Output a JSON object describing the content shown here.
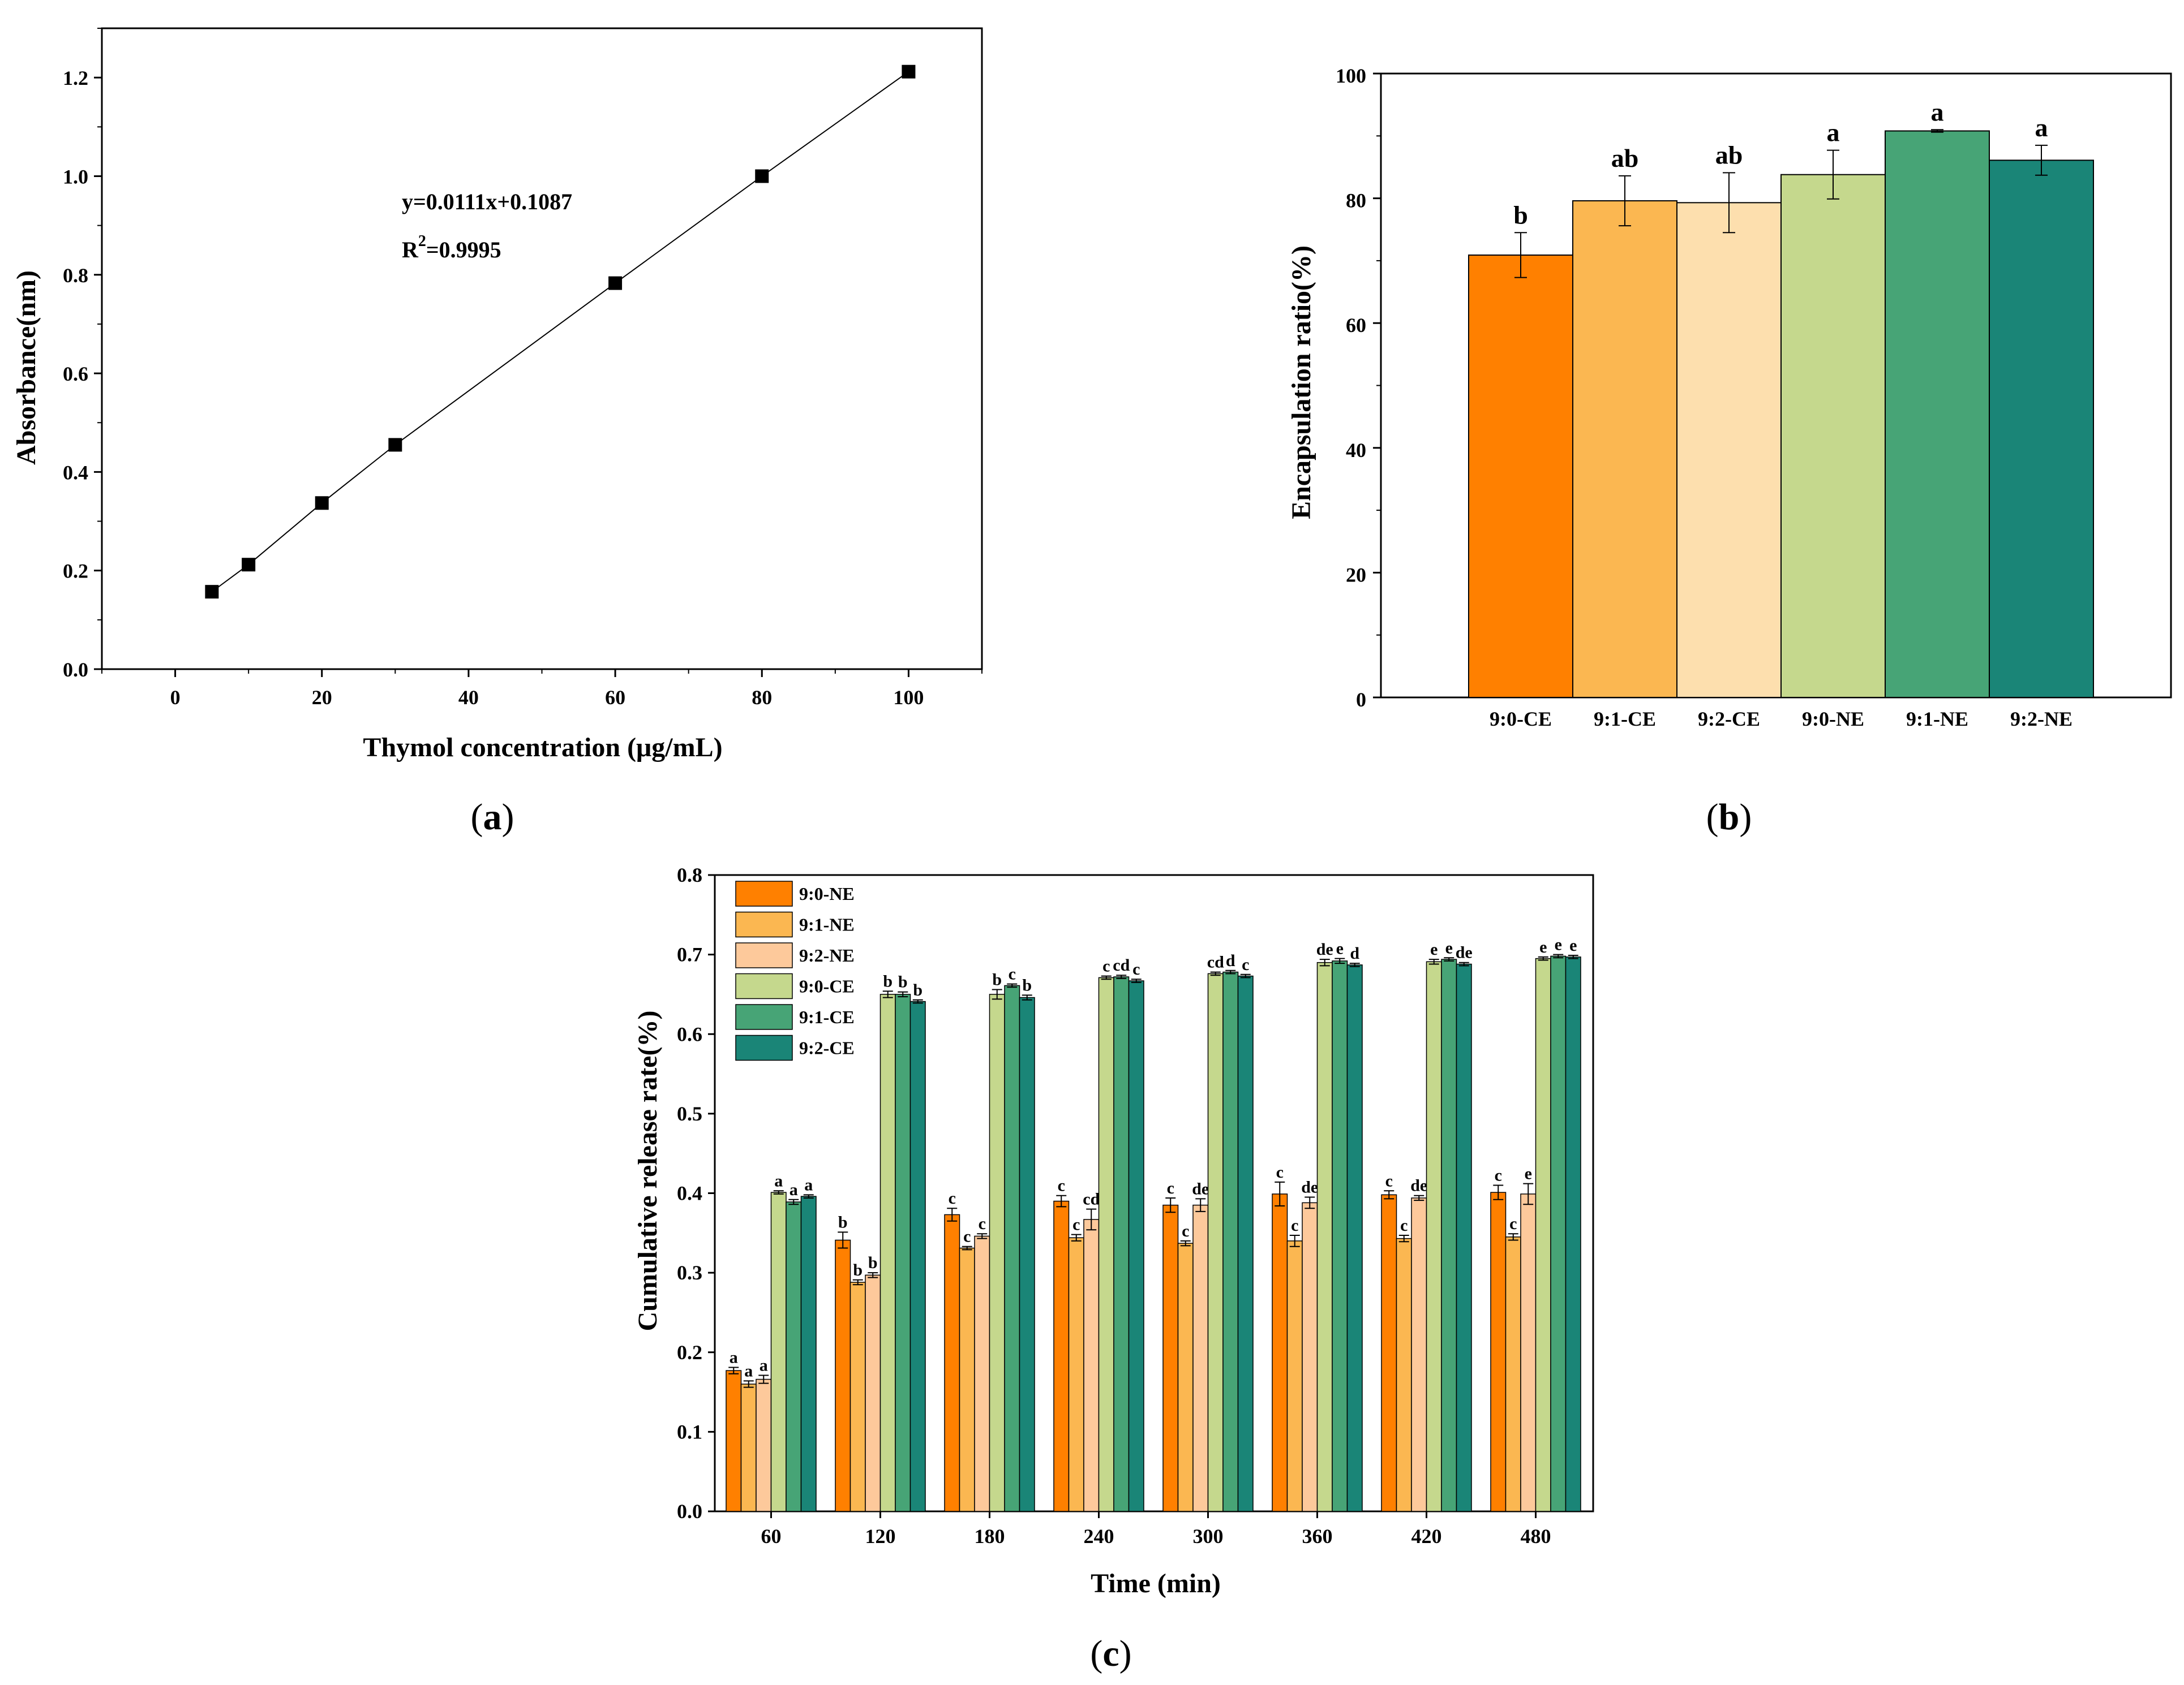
{
  "panels": {
    "a": {
      "label": "a"
    },
    "b": {
      "label": "b"
    },
    "c": {
      "label": "c"
    }
  },
  "chart_data": [
    {
      "id": "a",
      "type": "scatter",
      "xlabel": "Thymol concentration (μg/mL)",
      "ylabel": "Absorbance(nm)",
      "xlim": [
        -10,
        110
      ],
      "ylim": [
        0.0,
        1.3
      ],
      "xticks": [
        0,
        20,
        40,
        60,
        80,
        100
      ],
      "xtick_labels": [
        "0",
        "20",
        "40",
        "60",
        "80",
        "100"
      ],
      "yticks": [
        0.0,
        0.2,
        0.4,
        0.6,
        0.8,
        1.0,
        1.2
      ],
      "ytick_labels": [
        "0.0",
        "0.2",
        "0.4",
        "0.6",
        "0.8",
        "1.0",
        "1.2"
      ],
      "x": [
        5,
        10,
        20,
        30,
        60,
        80,
        100
      ],
      "y": [
        0.157,
        0.212,
        0.337,
        0.455,
        0.783,
        1.0,
        1.212
      ],
      "fit_line": {
        "slope": 0.0111,
        "intercept": 0.1087
      },
      "equation": "y=0.0111x+0.1087",
      "r2_prefix": "R",
      "r2_sup": "2",
      "r2_value": "=0.9995"
    },
    {
      "id": "b",
      "type": "bar",
      "xlabel": "",
      "ylabel": "Encapsulation ratio(%)",
      "ylim": [
        0,
        100
      ],
      "yticks": [
        0,
        20,
        40,
        60,
        80,
        100
      ],
      "ytick_labels": [
        "0",
        "20",
        "40",
        "60",
        "80",
        "100"
      ],
      "categories": [
        "9:0-CE",
        "9:1-CE",
        "9:2-CE",
        "9:0-NE",
        "9:1-NE",
        "9:2-NE"
      ],
      "values": [
        70.9,
        79.6,
        79.3,
        83.8,
        90.8,
        86.1
      ],
      "errors": [
        3.6,
        4.0,
        4.8,
        3.9,
        0.2,
        2.4
      ],
      "letters": [
        "b",
        "ab",
        "ab",
        "a",
        "a",
        "a"
      ],
      "colors": [
        "#ff8000",
        "#fbb751",
        "#fddfae",
        "#c5d88d",
        "#47a476",
        "#1a8577"
      ]
    },
    {
      "id": "c",
      "type": "bar",
      "xlabel": "Time (min)",
      "ylabel": "Cumulative release rate(%)",
      "ylim": [
        0.0,
        0.8
      ],
      "yticks": [
        0.0,
        0.1,
        0.2,
        0.3,
        0.4,
        0.5,
        0.6,
        0.7,
        0.8
      ],
      "ytick_labels": [
        "0.0",
        "0.1",
        "0.2",
        "0.3",
        "0.4",
        "0.5",
        "0.6",
        "0.7",
        "0.8"
      ],
      "categories": [
        "60",
        "120",
        "180",
        "240",
        "300",
        "360",
        "420",
        "480"
      ],
      "legend_position": "top-left",
      "series": [
        {
          "name": "9:0-NE",
          "color": "#ff8000",
          "values": [
            0.177,
            0.341,
            0.373,
            0.39,
            0.385,
            0.399,
            0.398,
            0.401
          ],
          "errors": [
            0.004,
            0.01,
            0.008,
            0.007,
            0.009,
            0.015,
            0.005,
            0.009
          ],
          "letters": [
            "a",
            "b",
            "c",
            "c",
            "c",
            "c",
            "c",
            "c"
          ]
        },
        {
          "name": "9:1-NE",
          "color": "#fbb751",
          "values": [
            0.16,
            0.288,
            0.331,
            0.344,
            0.337,
            0.34,
            0.343,
            0.345
          ],
          "errors": [
            0.004,
            0.003,
            0.002,
            0.004,
            0.003,
            0.007,
            0.004,
            0.004
          ],
          "letters": [
            "a",
            "b",
            "c",
            "c",
            "c",
            "c",
            "c",
            "c"
          ]
        },
        {
          "name": "9:2-NE",
          "color": "#fdc99b",
          "values": [
            0.166,
            0.297,
            0.346,
            0.367,
            0.385,
            0.388,
            0.394,
            0.399
          ],
          "errors": [
            0.005,
            0.003,
            0.003,
            0.013,
            0.008,
            0.007,
            0.003,
            0.013
          ],
          "letters": [
            "a",
            "b",
            "c",
            "cd",
            "de",
            "de",
            "de",
            "e"
          ]
        },
        {
          "name": "9:0-CE",
          "color": "#c5d88d",
          "values": [
            0.401,
            0.65,
            0.65,
            0.671,
            0.676,
            0.69,
            0.691,
            0.695
          ],
          "errors": [
            0.002,
            0.004,
            0.006,
            0.002,
            0.002,
            0.004,
            0.003,
            0.002
          ],
          "letters": [
            "a",
            "b",
            "b",
            "c",
            "cd",
            "de",
            "e",
            "e"
          ]
        },
        {
          "name": "9:1-CE",
          "color": "#47a476",
          "values": [
            0.389,
            0.65,
            0.661,
            0.672,
            0.678,
            0.692,
            0.694,
            0.698
          ],
          "errors": [
            0.003,
            0.003,
            0.002,
            0.002,
            0.002,
            0.003,
            0.002,
            0.002
          ],
          "letters": [
            "a",
            "b",
            "c",
            "cd",
            "d",
            "e",
            "e",
            "e"
          ]
        },
        {
          "name": "9:2-CE",
          "color": "#1a8577",
          "values": [
            0.396,
            0.641,
            0.646,
            0.667,
            0.673,
            0.687,
            0.688,
            0.697
          ],
          "errors": [
            0.002,
            0.002,
            0.003,
            0.002,
            0.002,
            0.002,
            0.002,
            0.002
          ],
          "letters": [
            "a",
            "b",
            "b",
            "c",
            "c",
            "d",
            "de",
            "e"
          ]
        }
      ]
    }
  ]
}
